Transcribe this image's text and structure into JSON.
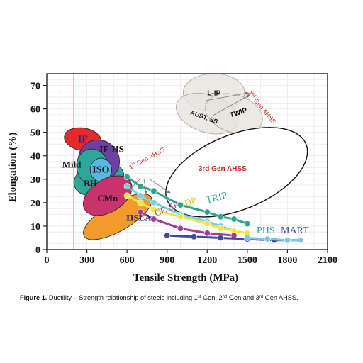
{
  "chart_data": {
    "type": "scatter",
    "xlabel": "Tensile Strength (MPa)",
    "ylabel": "Elongation (%)",
    "xlim": [
      0,
      2100
    ],
    "ylim": [
      0,
      75
    ],
    "xticks": [
      0,
      300,
      600,
      900,
      1200,
      1500,
      1800,
      2100
    ],
    "yticks": [
      0,
      10,
      20,
      30,
      40,
      50,
      60,
      70
    ],
    "grid": true,
    "regions": [
      {
        "label": "IF",
        "cx": 270,
        "cy": 47,
        "rx": 85,
        "ry": 8,
        "angle": 80,
        "color": "#e42a2a",
        "label_color": "#2a2a6a"
      },
      {
        "label": "BH",
        "cx": 390,
        "cy": 30,
        "rx": 190,
        "ry": 7,
        "angle": 14,
        "color": "#2ea79a",
        "label_color": "#111111"
      },
      {
        "label": "IF-HS",
        "cx": 390,
        "cy": 38,
        "rx": 150,
        "ry": 9,
        "angle": 45,
        "color": "#6f3fa5",
        "label_color": "#111111"
      },
      {
        "label": "Mild",
        "cx": 345,
        "cy": 35,
        "rx": 120,
        "ry": 8,
        "angle": 18,
        "color": "#2ea79a",
        "label_color": "#111111"
      },
      {
        "label": "ISO",
        "cx": 405,
        "cy": 34,
        "rx": 80,
        "ry": 5,
        "angle": 0,
        "color": "#58b8dd",
        "label_color": "#111111"
      },
      {
        "label": "HSLA",
        "cx": 530,
        "cy": 14,
        "rx": 290,
        "ry": 6,
        "angle": 30,
        "color": "#f39a2c",
        "label_color": "#2a2a6a"
      },
      {
        "label": "CMn",
        "cx": 455,
        "cy": 23,
        "rx": 200,
        "ry": 7,
        "angle": 32,
        "color": "#c8336b",
        "label_color": "#111111"
      },
      {
        "label": "L-IP",
        "cx": 1250,
        "cy": 67,
        "rx": 230,
        "ry": 8,
        "angle": 0,
        "color": "#e7e3dc",
        "label_color": "#111111"
      },
      {
        "label": "AUST. SS",
        "cx": 1200,
        "cy": 58,
        "rx": 240,
        "ry": 8,
        "angle": -18,
        "color": "#e7e3dc",
        "label_color": "#111111"
      },
      {
        "label": "TWIP",
        "cx": 1400,
        "cy": 58,
        "rx": 220,
        "ry": 8,
        "angle": -18,
        "color": "#e7e3dc",
        "label_color": "#111111"
      },
      {
        "label": "3rd Gen AHSS",
        "cx": 1420,
        "cy": 33,
        "rx": 560,
        "ry": 16,
        "angle": 22,
        "color": "#ffffff",
        "label_color": "#d42323"
      }
    ],
    "series": [
      {
        "name": "TRIP",
        "color": "#2fa38f",
        "x": [
          600,
          700,
          800,
          1000,
          1200,
          1300,
          1400,
          1500
        ],
        "y": [
          31,
          27,
          25,
          19,
          16,
          14,
          13,
          11
        ]
      },
      {
        "name": "TRIP",
        "color": "#74d1e3",
        "x": [
          600,
          700,
          800,
          1000,
          1200,
          1300,
          1400
        ],
        "y": [
          27,
          23,
          20,
          15,
          12,
          10,
          8
        ]
      },
      {
        "name": "DP",
        "color": "#f0e53d",
        "x": [
          600,
          700,
          800,
          1000,
          1200,
          1300,
          1400,
          1500
        ],
        "y": [
          23,
          20,
          17,
          14,
          11,
          9,
          8,
          7
        ]
      },
      {
        "name": "CP, SF",
        "color": "#a43d95",
        "x": [
          700,
          800,
          1000,
          1200,
          1400
        ],
        "y": [
          16,
          13,
          9,
          7,
          6
        ]
      },
      {
        "name": "MART",
        "color": "#3e4a9c",
        "x": [
          900,
          1100,
          1300,
          1500,
          1700,
          1900
        ],
        "y": [
          6,
          5.5,
          5,
          4.5,
          4,
          4
        ]
      },
      {
        "name": "PHS",
        "color": "#78c9e6",
        "x": [
          1500,
          1650,
          1800,
          1900
        ],
        "y": [
          5,
          4.5,
          4,
          4
        ]
      }
    ],
    "annotations": [
      {
        "text": "1st Gen AHSS",
        "color": "#d42323"
      },
      {
        "text": "2nd Gen AHSS",
        "color": "#d42323"
      },
      {
        "text": "TRIP",
        "color": "#2fa38f"
      },
      {
        "text": "CP, SF",
        "color": "#a43d95"
      },
      {
        "text": "DP",
        "color": "#d8c800"
      },
      {
        "text": "PHS",
        "color": "#2fa38f"
      },
      {
        "text": "MART",
        "color": "#3e4a9c"
      }
    ]
  },
  "caption": {
    "label": "Figure 1.",
    "text": "Ductility – Strength relationship of steels including 1st Gen, 2nd Gen and 3rd Gen AHSS."
  }
}
